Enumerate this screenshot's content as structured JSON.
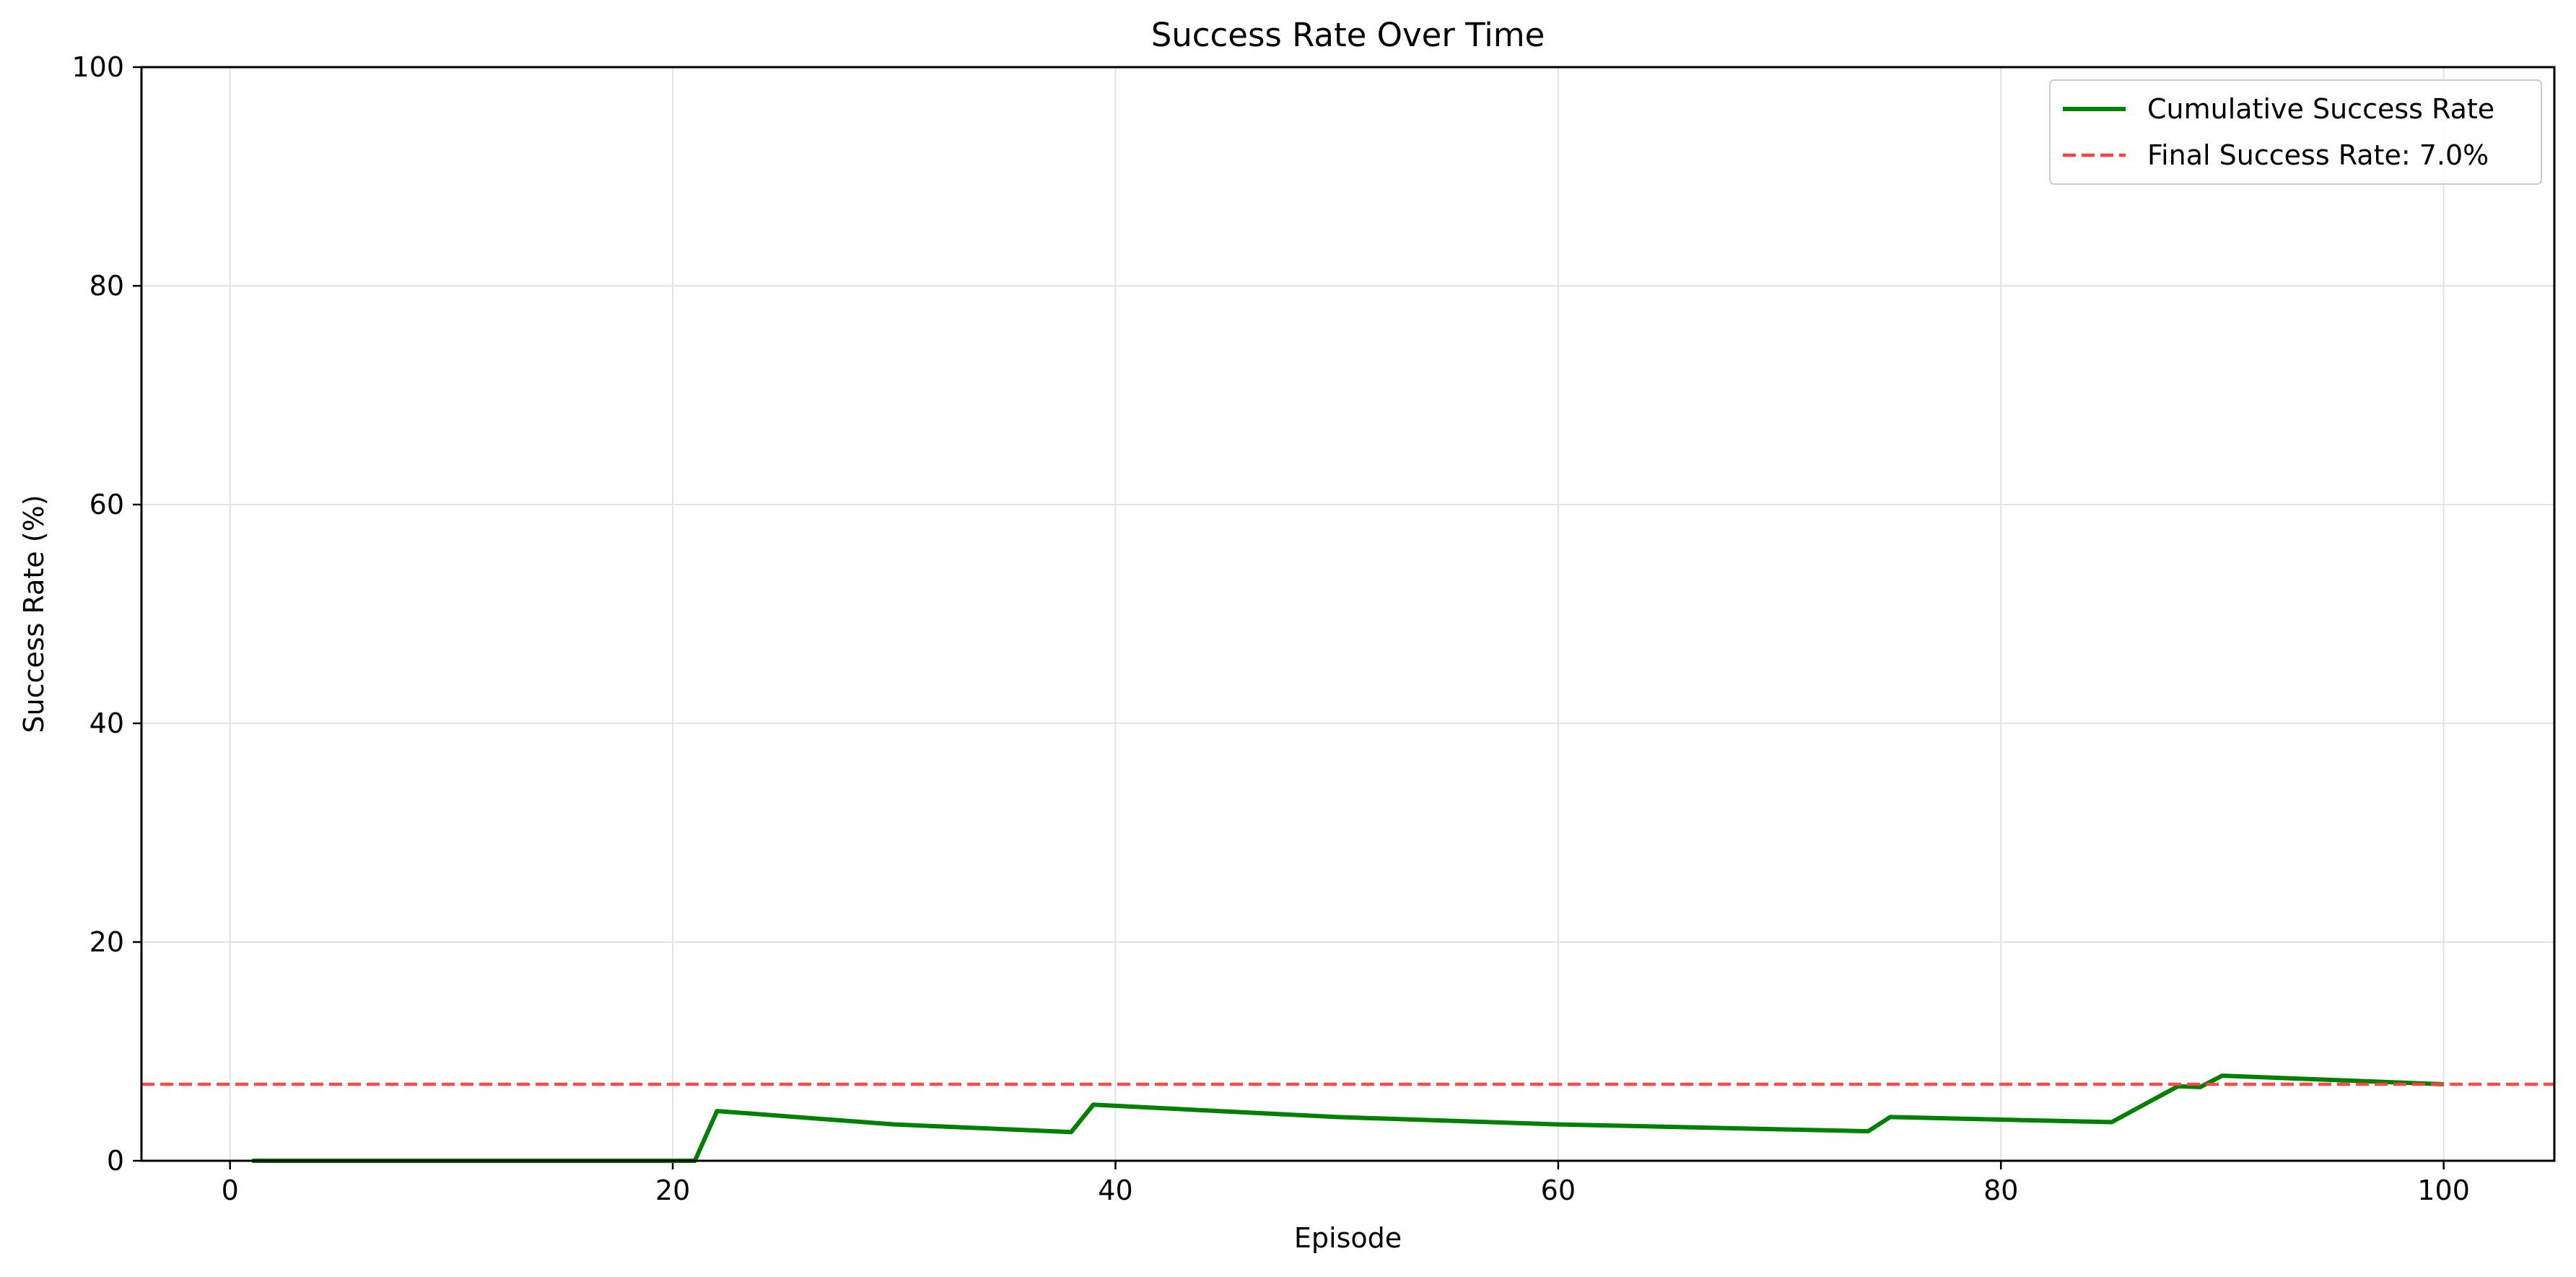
{
  "chart_data": {
    "type": "line",
    "title": "Success Rate Over Time",
    "xlabel": "Episode",
    "ylabel": "Success Rate (%)",
    "xlim": [
      -4,
      105
    ],
    "ylim": [
      0,
      100
    ],
    "xticks": [
      0,
      20,
      40,
      60,
      80,
      100
    ],
    "yticks": [
      0,
      20,
      40,
      60,
      80,
      100
    ],
    "grid": true,
    "legend_position": "top-right",
    "series": [
      {
        "name": "Cumulative Success Rate",
        "color": "#008000",
        "style": "solid",
        "x": [
          1,
          21,
          22,
          30,
          38,
          39,
          50,
          60,
          74,
          75,
          85,
          88,
          89,
          90,
          100
        ],
        "y": [
          0,
          0,
          4.55,
          3.33,
          2.63,
          5.13,
          4.0,
          3.33,
          2.7,
          4.0,
          3.53,
          6.82,
          6.74,
          7.78,
          7.0
        ]
      },
      {
        "name": "Final Success Rate: 7.0%",
        "color": "#ff4040",
        "style": "dashed",
        "hline": 7.0
      }
    ]
  }
}
